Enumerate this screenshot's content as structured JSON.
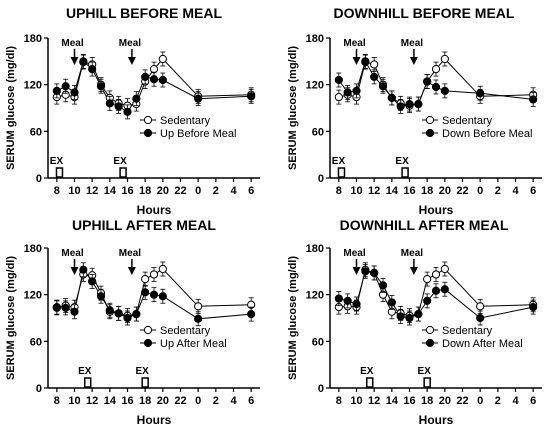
{
  "figure": {
    "x_tick_labels": [
      "8",
      "10",
      "12",
      "14",
      "16",
      "18",
      "20",
      "22",
      "0",
      "2",
      "4",
      "6"
    ]
  },
  "colors": {
    "ink": "#000000",
    "open_fill": "#ffffff",
    "background": "#ffffff"
  },
  "chart_data": [
    {
      "type": "line",
      "title": "UPHILL BEFORE MEAL",
      "xlabel": "Hours",
      "ylabel": "SERUM glucose (mg/dl)",
      "ylim": [
        0,
        180
      ],
      "yticks": [
        0,
        60,
        120,
        180
      ],
      "x_unit": "hours since 08:00",
      "meal_label": "Meal",
      "meal_times": [
        10,
        16.5
      ],
      "ex_label": "EX",
      "ex_times": [
        8.3,
        15.5
      ],
      "series": [
        {
          "name": "Sedentary",
          "marker": "open",
          "x": [
            8,
            9,
            10,
            11,
            12,
            13,
            14,
            15,
            16,
            17,
            18,
            19,
            20,
            24,
            30
          ],
          "y": [
            104,
            107,
            104,
            149,
            146,
            120,
            103,
            96,
            93,
            95,
            124,
            140,
            153,
            105,
            107
          ]
        },
        {
          "name": "Up Before Meal",
          "marker": "filled",
          "x": [
            8,
            9,
            10,
            11,
            12,
            13,
            14,
            15,
            16,
            17,
            18,
            19,
            20,
            24,
            30
          ],
          "y": [
            112,
            118,
            110,
            150,
            140,
            118,
            96,
            92,
            85,
            102,
            130,
            127,
            126,
            102,
            105
          ]
        }
      ]
    },
    {
      "type": "line",
      "title": "DOWNHILL BEFORE MEAL",
      "xlabel": "Hours",
      "ylabel": "SERUM glucose (mg/dl)",
      "ylim": [
        0,
        180
      ],
      "yticks": [
        0,
        60,
        120,
        180
      ],
      "x_unit": "hours since 08:00",
      "meal_label": "Meal",
      "meal_times": [
        10,
        16.5
      ],
      "ex_label": "EX",
      "ex_times": [
        8.3,
        15.5
      ],
      "series": [
        {
          "name": "Sedentary",
          "marker": "open",
          "x": [
            8,
            9,
            10,
            11,
            12,
            13,
            14,
            15,
            16,
            17,
            18,
            19,
            20,
            24,
            30
          ],
          "y": [
            104,
            107,
            104,
            149,
            146,
            120,
            103,
            96,
            93,
            95,
            124,
            140,
            153,
            105,
            107
          ]
        },
        {
          "name": "Down Before Meal",
          "marker": "filled",
          "x": [
            8,
            9,
            10,
            11,
            12,
            13,
            14,
            15,
            16,
            17,
            18,
            19,
            20,
            24,
            30
          ],
          "y": [
            126,
            110,
            112,
            150,
            130,
            118,
            103,
            92,
            95,
            95,
            124,
            117,
            112,
            109,
            101
          ]
        }
      ]
    },
    {
      "type": "line",
      "title": "UPHILL AFTER MEAL",
      "xlabel": "Hours",
      "ylabel": "SERUM glucose (mg/dl)",
      "ylim": [
        0,
        180
      ],
      "yticks": [
        0,
        60,
        120,
        180
      ],
      "x_unit": "hours since 08:00",
      "meal_label": "Meal",
      "meal_times": [
        10,
        16.5
      ],
      "ex_label": "EX",
      "ex_times": [
        11.5,
        18
      ],
      "series": [
        {
          "name": "Sedentary",
          "marker": "open",
          "x": [
            8,
            9,
            10,
            11,
            12,
            13,
            14,
            15,
            16,
            17,
            18,
            19,
            20,
            24,
            30
          ],
          "y": [
            104,
            106,
            104,
            146,
            145,
            122,
            98,
            96,
            93,
            95,
            140,
            146,
            153,
            105,
            107
          ]
        },
        {
          "name": "Up After Meal",
          "marker": "filled",
          "x": [
            8,
            9,
            10,
            11,
            12,
            13,
            14,
            15,
            16,
            17,
            18,
            19,
            20,
            24,
            30
          ],
          "y": [
            103,
            103,
            98,
            152,
            137,
            118,
            100,
            96,
            90,
            95,
            123,
            120,
            118,
            89,
            95
          ]
        }
      ]
    },
    {
      "type": "line",
      "title": "DOWNHILL AFTER MEAL",
      "xlabel": "Hours",
      "ylabel": "SERUM glucose (mg/dl)",
      "ylim": [
        0,
        180
      ],
      "yticks": [
        0,
        60,
        120,
        180
      ],
      "x_unit": "hours since 08:00",
      "meal_label": "Meal",
      "meal_times": [
        10,
        16.5
      ],
      "ex_label": "EX",
      "ex_times": [
        11.5,
        18
      ],
      "series": [
        {
          "name": "Sedentary",
          "marker": "open",
          "x": [
            8,
            9,
            10,
            11,
            12,
            13,
            14,
            15,
            16,
            17,
            18,
            19,
            20,
            24,
            30
          ],
          "y": [
            104,
            105,
            104,
            152,
            148,
            120,
            98,
            96,
            93,
            95,
            140,
            146,
            153,
            105,
            107
          ]
        },
        {
          "name": "Down After Meal",
          "marker": "filled",
          "x": [
            8,
            9,
            10,
            11,
            12,
            13,
            14,
            15,
            16,
            17,
            18,
            19,
            20,
            24,
            30
          ],
          "y": [
            115,
            112,
            108,
            150,
            148,
            132,
            110,
            92,
            90,
            95,
            112,
            125,
            127,
            90,
            104
          ]
        }
      ]
    }
  ]
}
